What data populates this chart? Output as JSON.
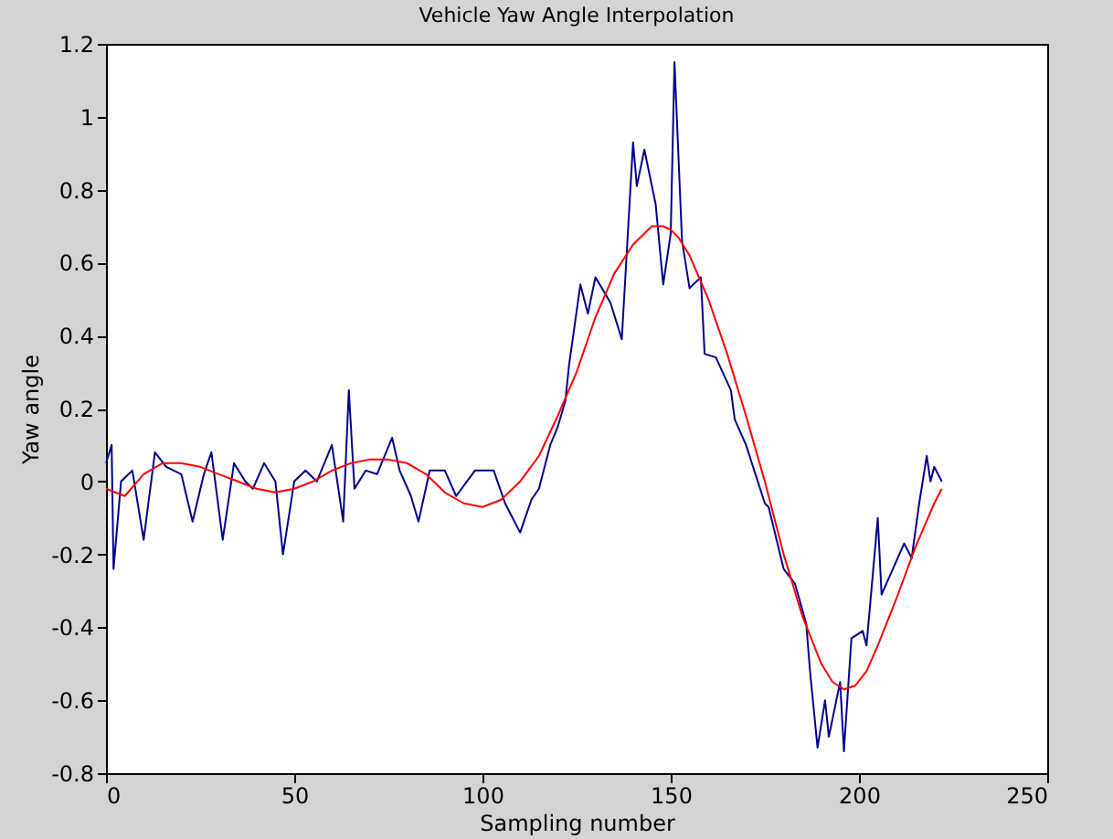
{
  "chart_data": {
    "type": "line",
    "title": "Vehicle Yaw Angle Interpolation",
    "xlabel": "Sampling number",
    "ylabel": "Yaw angle",
    "xlim": [
      0,
      250
    ],
    "ylim": [
      -0.8,
      1.2
    ],
    "xticks": [
      0,
      50,
      100,
      150,
      200,
      250
    ],
    "yticks": [
      -0.8,
      -0.6,
      -0.4,
      -0.2,
      0,
      0.2,
      0.4,
      0.6,
      0.8,
      1,
      1.2
    ],
    "grid": false,
    "legend": false,
    "series": [
      {
        "color": "#00008b",
        "x": [
          0,
          1.5,
          2,
          4,
          7,
          10,
          13,
          16,
          20,
          23,
          26,
          28,
          31,
          34,
          37,
          39,
          42,
          45,
          47,
          50,
          53,
          56,
          60,
          63,
          64.5,
          66,
          69,
          72,
          76,
          78,
          81,
          83,
          86,
          90,
          93,
          98,
          103,
          106,
          110,
          113,
          115,
          118,
          120,
          122,
          123,
          126,
          128,
          130,
          134,
          137,
          140,
          141,
          143,
          146,
          148,
          150,
          151,
          153,
          155,
          158,
          159,
          162,
          166,
          167,
          170,
          175,
          176,
          180,
          183,
          186,
          187,
          189,
          191,
          192,
          195,
          196,
          198,
          201,
          202,
          205,
          206,
          209,
          212,
          214,
          216,
          218,
          219,
          220,
          222
        ],
        "values": [
          0.05,
          0.1,
          -0.24,
          0.0,
          0.03,
          -0.16,
          0.08,
          0.04,
          0.02,
          -0.11,
          0.02,
          0.08,
          -0.16,
          0.05,
          0.0,
          -0.02,
          0.05,
          0.0,
          -0.2,
          0.0,
          0.03,
          0.0,
          0.1,
          -0.11,
          0.25,
          -0.02,
          0.03,
          0.02,
          0.12,
          0.03,
          -0.04,
          -0.11,
          0.03,
          0.03,
          -0.04,
          0.03,
          0.03,
          -0.06,
          -0.14,
          -0.05,
          -0.02,
          0.1,
          0.15,
          0.22,
          0.32,
          0.54,
          0.46,
          0.56,
          0.49,
          0.39,
          0.93,
          0.81,
          0.91,
          0.76,
          0.54,
          0.68,
          1.15,
          0.66,
          0.53,
          0.56,
          0.35,
          0.34,
          0.25,
          0.17,
          0.1,
          -0.06,
          -0.07,
          -0.24,
          -0.28,
          -0.39,
          -0.52,
          -0.73,
          -0.6,
          -0.7,
          -0.55,
          -0.74,
          -0.43,
          -0.41,
          -0.45,
          -0.1,
          -0.31,
          -0.24,
          -0.17,
          -0.21,
          -0.06,
          0.07,
          0.0,
          0.04,
          0.0
        ],
        "line_style": "solid"
      },
      {
        "color": "#ff0000",
        "x": [
          0,
          5,
          10,
          15,
          20,
          25,
          30,
          35,
          40,
          45,
          50,
          55,
          60,
          65,
          70,
          75,
          80,
          85,
          90,
          95,
          100,
          105,
          110,
          115,
          120,
          125,
          130,
          135,
          140,
          145,
          148,
          150,
          152,
          155,
          160,
          165,
          170,
          175,
          180,
          185,
          190,
          193,
          196,
          199,
          202,
          205,
          210,
          215,
          220,
          222
        ],
        "values": [
          -0.02,
          -0.04,
          0.02,
          0.05,
          0.05,
          0.04,
          0.02,
          0,
          -0.02,
          -0.03,
          -0.02,
          0,
          0.03,
          0.05,
          0.06,
          0.06,
          0.05,
          0.02,
          -0.03,
          -0.06,
          -0.07,
          -0.05,
          0,
          0.07,
          0.18,
          0.3,
          0.45,
          0.57,
          0.65,
          0.7,
          0.7,
          0.69,
          0.67,
          0.62,
          0.5,
          0.35,
          0.18,
          0,
          -0.2,
          -0.37,
          -0.5,
          -0.55,
          -0.57,
          -0.56,
          -0.52,
          -0.45,
          -0.32,
          -0.18,
          -0.06,
          -0.02
        ],
        "line_style": "solid"
      }
    ]
  }
}
